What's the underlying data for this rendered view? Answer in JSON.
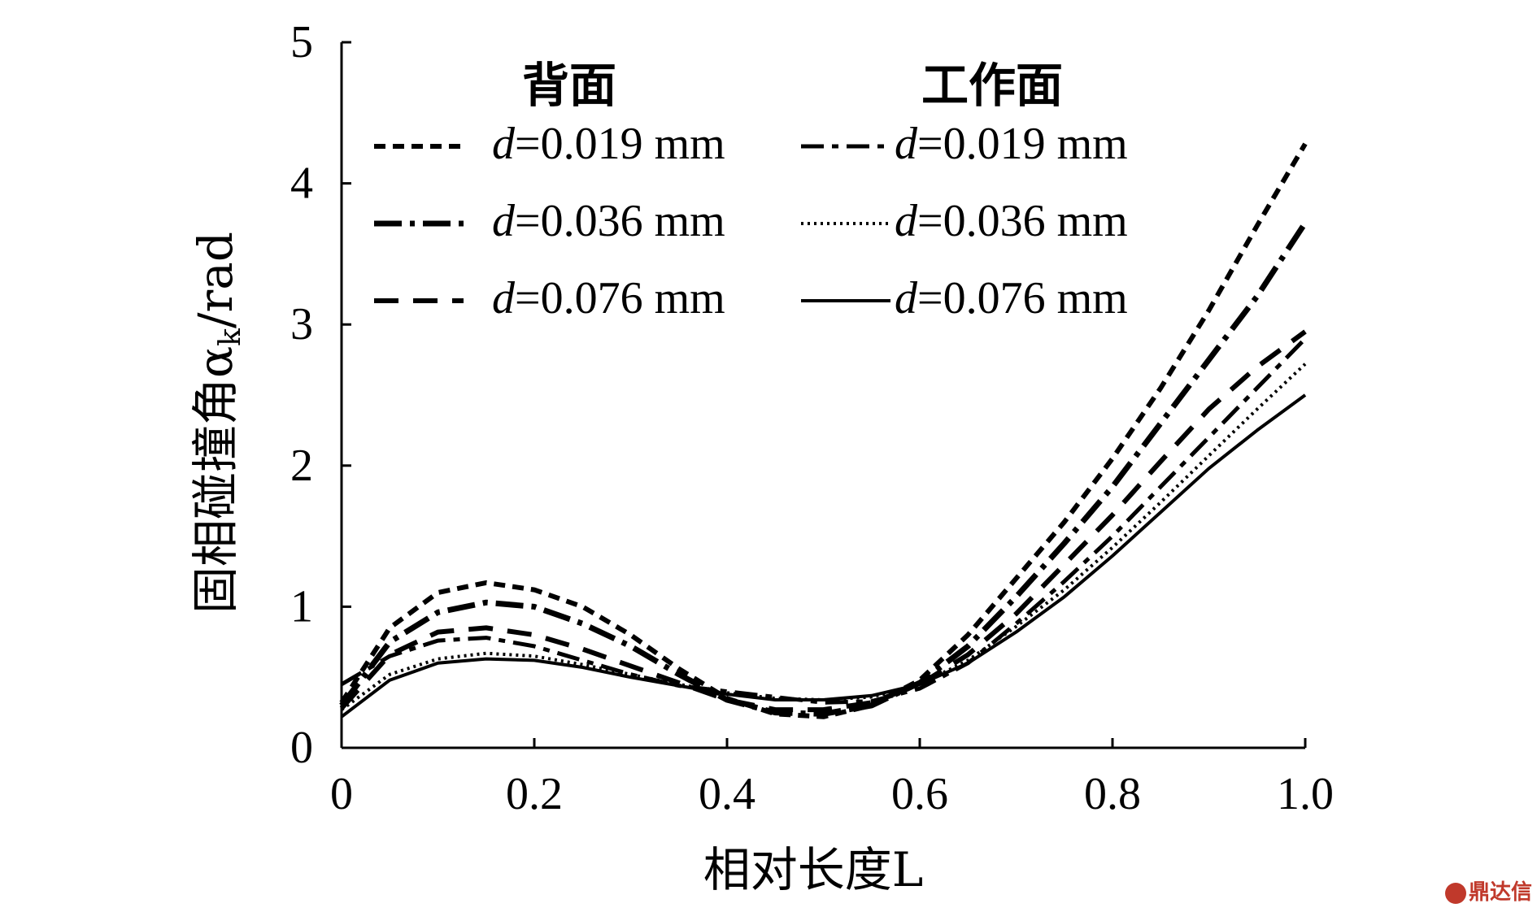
{
  "watermark": "鼎达信",
  "chart_data": {
    "type": "line",
    "xlabel": "相对长度L",
    "ylabel": "固相碰撞角α_k/rad",
    "xlim": [
      0,
      1.0
    ],
    "ylim": [
      0,
      5
    ],
    "xticks": [
      "0",
      "0.2",
      "0.4",
      "0.6",
      "0.8",
      "1.0"
    ],
    "yticks": [
      "0",
      "1",
      "2",
      "3",
      "4",
      "5"
    ],
    "grid": false,
    "legend_groups": [
      {
        "title": "背面",
        "position": "top-left"
      },
      {
        "title": "工作面",
        "position": "top-right"
      }
    ],
    "series": [
      {
        "name": "d=0.019 mm",
        "group": "背面",
        "style": "short-dash",
        "x": [
          0,
          0.05,
          0.1,
          0.15,
          0.2,
          0.25,
          0.3,
          0.35,
          0.4,
          0.45,
          0.5,
          0.55,
          0.6,
          0.65,
          0.7,
          0.75,
          0.8,
          0.85,
          0.9,
          0.95,
          1.0
        ],
        "y": [
          0.32,
          0.85,
          1.1,
          1.17,
          1.12,
          1.0,
          0.8,
          0.56,
          0.35,
          0.24,
          0.22,
          0.3,
          0.48,
          0.8,
          1.2,
          1.6,
          2.05,
          2.55,
          3.1,
          3.7,
          4.28
        ]
      },
      {
        "name": "d=0.036 mm",
        "group": "背面",
        "style": "dash-dot",
        "x": [
          0,
          0.05,
          0.1,
          0.15,
          0.2,
          0.25,
          0.3,
          0.35,
          0.4,
          0.45,
          0.5,
          0.55,
          0.6,
          0.65,
          0.7,
          0.75,
          0.8,
          0.85,
          0.9,
          0.95,
          1.0
        ],
        "y": [
          0.3,
          0.75,
          0.96,
          1.03,
          1.0,
          0.88,
          0.72,
          0.52,
          0.34,
          0.25,
          0.24,
          0.3,
          0.46,
          0.72,
          1.07,
          1.45,
          1.85,
          2.3,
          2.75,
          3.2,
          3.72
        ]
      },
      {
        "name": "d=0.076 mm",
        "group": "背面",
        "style": "long-dash",
        "x": [
          0,
          0.05,
          0.1,
          0.15,
          0.2,
          0.25,
          0.3,
          0.35,
          0.4,
          0.45,
          0.5,
          0.55,
          0.6,
          0.65,
          0.7,
          0.75,
          0.8,
          0.85,
          0.9,
          0.95,
          1.0
        ],
        "y": [
          0.28,
          0.66,
          0.82,
          0.85,
          0.8,
          0.7,
          0.58,
          0.46,
          0.34,
          0.27,
          0.27,
          0.32,
          0.45,
          0.66,
          0.95,
          1.3,
          1.65,
          2.03,
          2.4,
          2.7,
          2.95
        ]
      },
      {
        "name": "d=0.019 mm",
        "group": "工作面",
        "style": "long-short-dash",
        "x": [
          0,
          0.05,
          0.1,
          0.15,
          0.2,
          0.25,
          0.3,
          0.35,
          0.4,
          0.45,
          0.5,
          0.55,
          0.6,
          0.65,
          0.7,
          0.75,
          0.8,
          0.85,
          0.9,
          0.95,
          1.0
        ],
        "y": [
          0.45,
          0.65,
          0.76,
          0.78,
          0.72,
          0.62,
          0.52,
          0.44,
          0.4,
          0.36,
          0.32,
          0.33,
          0.42,
          0.6,
          0.88,
          1.18,
          1.5,
          1.85,
          2.2,
          2.55,
          2.9
        ]
      },
      {
        "name": "d=0.036 mm",
        "group": "工作面",
        "style": "dotted",
        "x": [
          0,
          0.05,
          0.1,
          0.15,
          0.2,
          0.25,
          0.3,
          0.35,
          0.4,
          0.45,
          0.5,
          0.55,
          0.6,
          0.65,
          0.7,
          0.75,
          0.8,
          0.85,
          0.9,
          0.95,
          1.0
        ],
        "y": [
          0.27,
          0.52,
          0.63,
          0.67,
          0.65,
          0.59,
          0.52,
          0.45,
          0.39,
          0.35,
          0.34,
          0.36,
          0.45,
          0.62,
          0.86,
          1.12,
          1.42,
          1.74,
          2.07,
          2.4,
          2.72
        ]
      },
      {
        "name": "d=0.076 mm",
        "group": "工作面",
        "style": "solid",
        "x": [
          0,
          0.05,
          0.1,
          0.15,
          0.2,
          0.25,
          0.3,
          0.35,
          0.4,
          0.45,
          0.5,
          0.55,
          0.6,
          0.65,
          0.7,
          0.75,
          0.8,
          0.85,
          0.9,
          0.95,
          1.0
        ],
        "y": [
          0.22,
          0.48,
          0.6,
          0.63,
          0.62,
          0.57,
          0.5,
          0.44,
          0.38,
          0.34,
          0.34,
          0.37,
          0.45,
          0.6,
          0.82,
          1.07,
          1.36,
          1.67,
          1.98,
          2.25,
          2.5
        ]
      }
    ]
  }
}
